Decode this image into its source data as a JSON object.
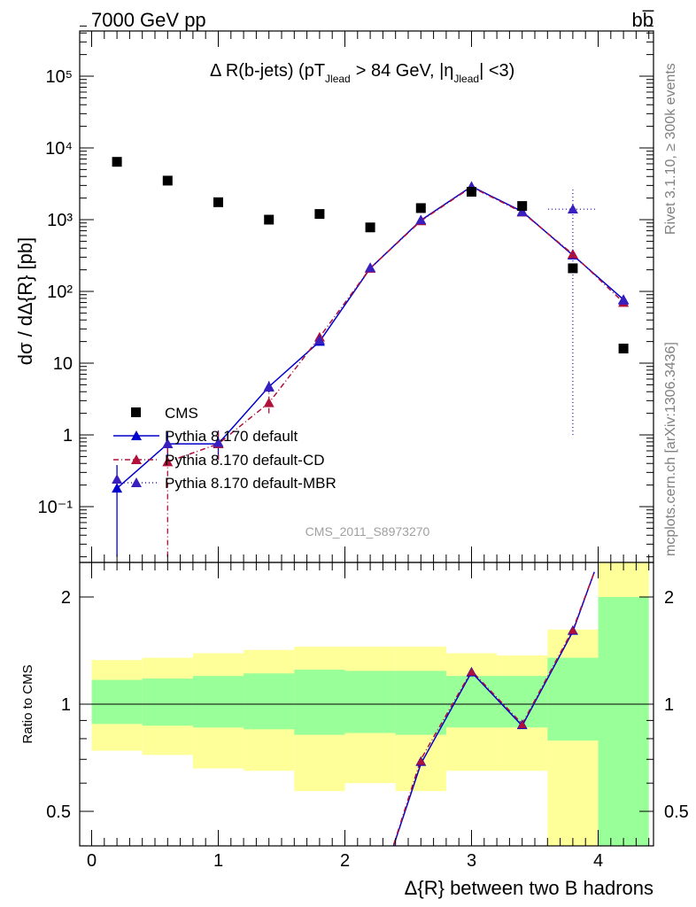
{
  "header": {
    "energy_label": "7000 GeV pp",
    "process_label": "bb̅"
  },
  "side_labels": {
    "rivet": "Rivet 3.1.10, ≥ 300k events",
    "mcplots": "mcplots.cern.ch [arXiv:1306.3436]"
  },
  "chart_data": [
    {
      "type": "scatter",
      "title": "Δ R(b-jets) (pT_Jlead > 84 GeV, |η_Jlead| <3)",
      "title_parts": {
        "prefix": "Δ R(b-jets) (pT",
        "sub1": "Jlead",
        "mid": ">  84 GeV, |η",
        "sub2": "Jlead",
        "suffix": "| <3)"
      },
      "ylabel": "dσ / dΔ{R} [pb]",
      "xlabel": "",
      "yscale": "log",
      "ylim": [
        0.02,
        500000
      ],
      "xlim": [
        -0.1,
        4.45
      ],
      "y_tick_labels": [
        "10⁻¹",
        "1",
        "10",
        "10²",
        "10³",
        "10⁴",
        "10⁵"
      ],
      "y_tick_values": [
        0.1,
        1,
        10,
        100,
        1000,
        10000,
        100000
      ],
      "watermark": "CMS_2011_S8973270",
      "legend_position": "lower-left",
      "series": [
        {
          "name": "CMS",
          "color": "#000000",
          "marker": "square",
          "x": [
            0.2,
            0.6,
            1.0,
            1.4,
            1.8,
            2.2,
            2.6,
            3.0,
            3.4,
            3.8,
            4.2
          ],
          "y": [
            6400,
            3500,
            1750,
            1000,
            1200,
            780,
            1450,
            2450,
            1550,
            210,
            16
          ]
        },
        {
          "name": "Pythia 8.170 default",
          "color": "#0000cc",
          "marker": "triangle",
          "line": "solid",
          "x": [
            0.2,
            0.6,
            1.0,
            1.4,
            1.8,
            2.2,
            2.6,
            3.0,
            3.4,
            3.8,
            4.2
          ],
          "y": [
            0.18,
            0.75,
            0.75,
            4.7,
            20,
            210,
            980,
            2900,
            1300,
            320,
            77
          ],
          "yerr_low": [
            0.16,
            0.3,
            0.3,
            0.8,
            1.5,
            8,
            20,
            40,
            20,
            10,
            4
          ],
          "yerr_high": [
            0.2,
            0.35,
            0.4,
            0.9,
            1.5,
            8,
            20,
            40,
            20,
            10,
            4
          ]
        },
        {
          "name": "Pythia 8.170 default-CD",
          "color": "#b0103a",
          "marker": "triangle",
          "line": "dashdot",
          "x": [
            0.2,
            0.6,
            1.0,
            1.4,
            1.8,
            2.2,
            2.6,
            3.0,
            3.4,
            3.8,
            4.2
          ],
          "y": [
            null,
            0.42,
            0.75,
            2.8,
            23,
            210,
            960,
            2850,
            1270,
            330,
            70
          ],
          "yerr_low": [
            null,
            0.4,
            0.3,
            0.8,
            2,
            8,
            20,
            40,
            20,
            10,
            4
          ],
          "yerr_high": [
            null,
            0.3,
            0.4,
            1.0,
            2,
            8,
            20,
            40,
            20,
            10,
            4
          ]
        },
        {
          "name": "Pythia 8.170 default-MBR",
          "color": "#3a1fbf",
          "marker": "triangle",
          "line": "dotted",
          "x": [
            0.2,
            0.6,
            1.0,
            1.4,
            1.8,
            2.2,
            2.6,
            3.0,
            3.4,
            3.8,
            4.2
          ],
          "y": [
            0.24,
            0.75,
            0.78,
            4.6,
            21,
            215,
            990,
            2850,
            1280,
            1400,
            75
          ],
          "yerr_low": [
            null,
            null,
            null,
            null,
            null,
            null,
            null,
            null,
            null,
            1399,
            null
          ],
          "yerr_high": [
            null,
            null,
            null,
            null,
            null,
            null,
            null,
            null,
            null,
            1400,
            null
          ]
        }
      ]
    },
    {
      "type": "line",
      "ylabel": "Ratio to CMS",
      "xlabel": "Δ{R} between two B hadrons",
      "yscale": "log",
      "ylim": [
        0.35,
        2.3
      ],
      "xlim": [
        -0.1,
        4.45
      ],
      "x_tick_labels": [
        "0",
        "1",
        "2",
        "3",
        "4"
      ],
      "x_tick_values": [
        0,
        1,
        2,
        3,
        4
      ],
      "y_tick_labels": [
        "0.5",
        "1",
        "2"
      ],
      "y_tick_values": [
        0.5,
        1,
        2
      ],
      "bands": {
        "bin_edges": [
          0,
          0.4,
          0.8,
          1.2,
          1.6,
          2.0,
          2.4,
          2.8,
          3.2,
          3.6,
          4.0,
          4.4
        ],
        "inner_low": [
          0.88,
          0.87,
          0.86,
          0.85,
          0.82,
          0.83,
          0.82,
          0.86,
          0.86,
          0.79,
          0.27
        ],
        "inner_high": [
          1.17,
          1.18,
          1.2,
          1.22,
          1.25,
          1.24,
          1.24,
          1.2,
          1.2,
          1.35,
          2.0
        ],
        "outer_low": [
          0.74,
          0.72,
          0.66,
          0.65,
          0.57,
          0.6,
          0.57,
          0.65,
          0.65,
          0.35,
          0.35
        ],
        "outer_high": [
          1.33,
          1.35,
          1.39,
          1.42,
          1.45,
          1.45,
          1.45,
          1.39,
          1.37,
          1.62,
          3.0
        ],
        "inner_color": "#99ff99",
        "outer_color": "#ffff99"
      },
      "series": [
        {
          "name": "Pythia 8.170 default",
          "color": "#0000cc",
          "line": "solid",
          "x": [
            2.33,
            2.6,
            3.0,
            3.4,
            3.8,
            3.97
          ],
          "y": [
            0.35,
            0.68,
            1.23,
            0.87,
            1.6,
            2.35
          ]
        },
        {
          "name": "Pythia 8.170 default-CD",
          "color": "#b0103a",
          "line": "dashdot",
          "x": [
            2.33,
            2.6,
            3.0,
            3.4,
            3.8,
            3.97
          ],
          "y": [
            0.35,
            0.7,
            1.24,
            0.88,
            1.62,
            2.35
          ]
        }
      ],
      "markers": [
        {
          "x": 2.6,
          "y": 0.69
        },
        {
          "x": 3.0,
          "y": 1.23
        },
        {
          "x": 3.4,
          "y": 0.875
        },
        {
          "x": 3.8,
          "y": 1.61
        }
      ]
    }
  ]
}
